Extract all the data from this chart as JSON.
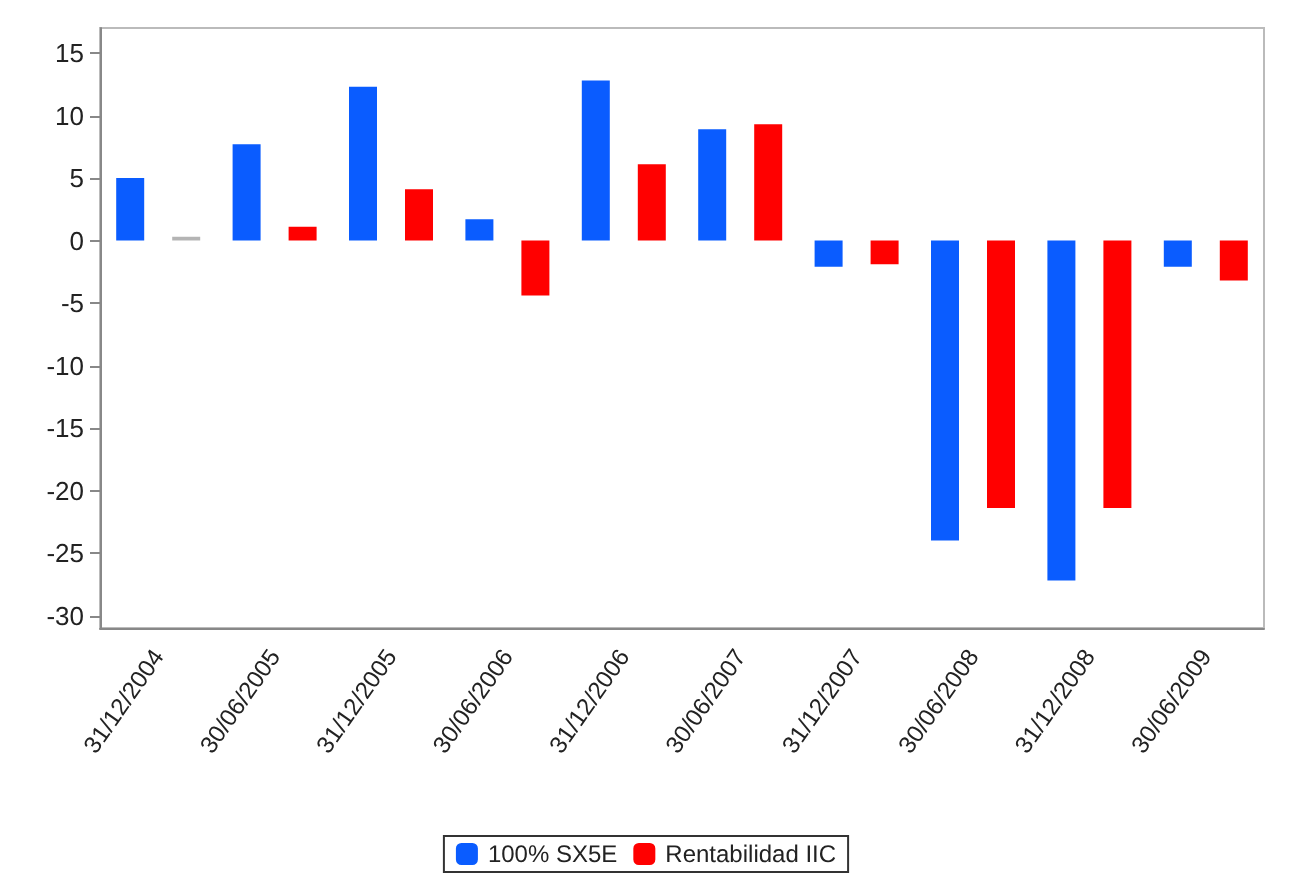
{
  "chart_data": {
    "type": "bar",
    "categories": [
      "31/12/2004",
      "30/06/2005",
      "31/12/2005",
      "30/06/2006",
      "31/12/2006",
      "30/06/2007",
      "31/12/2007",
      "30/06/2008",
      "31/12/2008",
      "30/06/2009"
    ],
    "series": [
      {
        "name": "100% SX5E",
        "color": "#0a5cff",
        "values": [
          5.0,
          7.7,
          12.3,
          1.7,
          12.8,
          8.9,
          -2.1,
          -24.0,
          -27.2,
          -2.1
        ]
      },
      {
        "name": "Rentabilidad IIC",
        "color": "#ff0000",
        "colors": [
          "#b4b4b4",
          "#ff0000",
          "#ff0000",
          "#ff0000",
          "#ff0000",
          "#ff0000",
          "#ff0000",
          "#ff0000",
          "#ff0000",
          "#ff0000"
        ],
        "values": [
          0.3,
          1.1,
          4.1,
          -4.4,
          6.1,
          9.3,
          -1.9,
          -21.4,
          -21.4,
          -3.2
        ]
      }
    ],
    "ylim": [
      -31,
      17
    ],
    "yticks": [
      -30,
      -25,
      -20,
      -15,
      -10,
      -5,
      0,
      5,
      10,
      15
    ],
    "grid": false,
    "legend": "bottom"
  }
}
